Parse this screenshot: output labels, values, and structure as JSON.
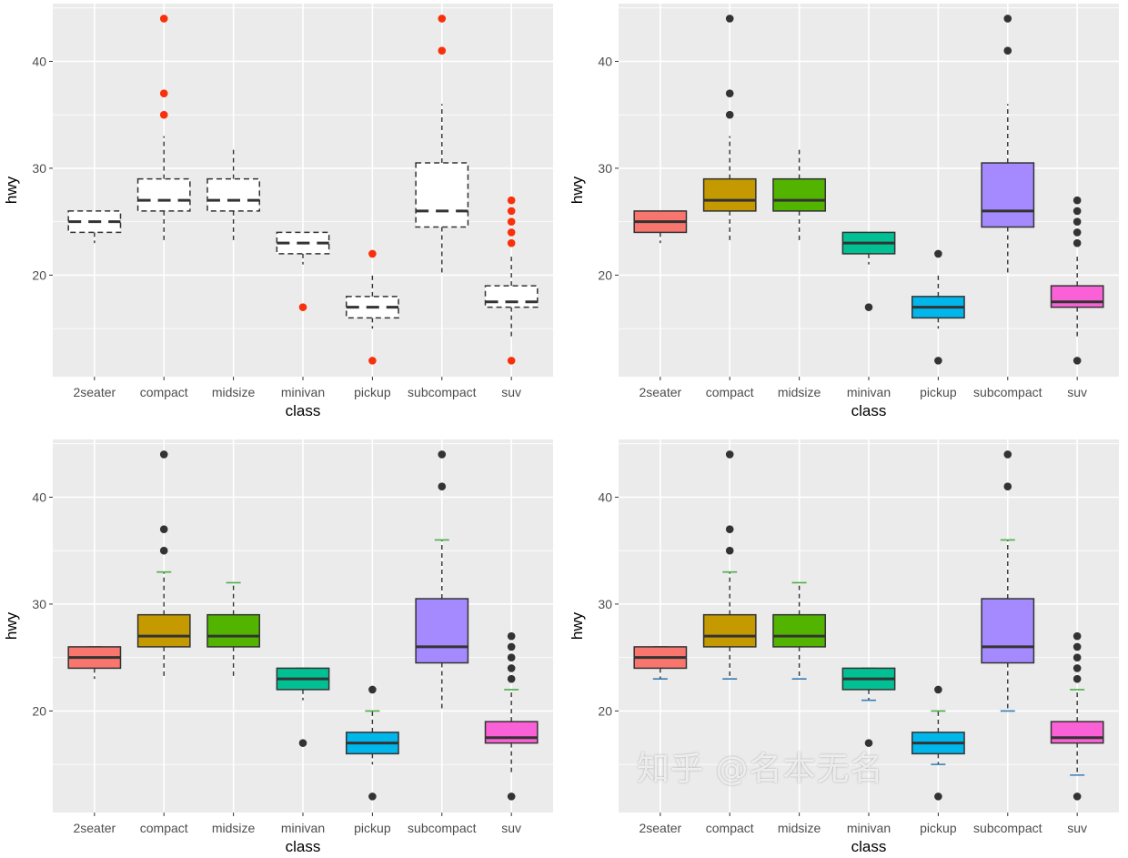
{
  "chart_data": [
    {
      "type": "box",
      "variant": "white dashed boxes, red outliers",
      "xlabel": "class",
      "ylabel": "hwy",
      "yticks": [
        20,
        30,
        40
      ],
      "ylim": [
        10.5,
        45.4
      ],
      "grid": true,
      "outlier_color": "#F8300C",
      "errorbar_top": false,
      "errorbar_bottom": false,
      "filled": false
    },
    {
      "type": "box",
      "variant": "filled boxes",
      "xlabel": "class",
      "ylabel": "hwy",
      "yticks": [
        20,
        30,
        40
      ],
      "ylim": [
        10.5,
        45.4
      ],
      "grid": true,
      "outlier_color": "#333333",
      "errorbar_top": false,
      "errorbar_bottom": false,
      "filled": true
    },
    {
      "type": "box",
      "variant": "filled boxes with upper whisker caps",
      "xlabel": "class",
      "ylabel": "hwy",
      "yticks": [
        20,
        30,
        40
      ],
      "ylim": [
        10.5,
        45.4
      ],
      "grid": true,
      "outlier_color": "#333333",
      "errorbar_top": true,
      "errorbar_bottom": false,
      "filled": true
    },
    {
      "type": "box",
      "variant": "filled boxes with upper and lower whisker caps",
      "xlabel": "class",
      "ylabel": "hwy",
      "yticks": [
        20,
        30,
        40
      ],
      "ylim": [
        10.5,
        45.4
      ],
      "grid": true,
      "outlier_color": "#333333",
      "errorbar_top": true,
      "errorbar_bottom": true,
      "filled": true
    }
  ],
  "categories": [
    "2seater",
    "compact",
    "midsize",
    "minivan",
    "pickup",
    "subcompact",
    "suv"
  ],
  "boxes": [
    {
      "min": 23,
      "q1": 24,
      "median": 25,
      "q3": 26,
      "max": 26,
      "outliers": []
    },
    {
      "min": 23,
      "q1": 26,
      "median": 27,
      "q3": 29,
      "max": 33,
      "outliers": [
        35,
        37,
        44
      ]
    },
    {
      "min": 23,
      "q1": 26,
      "median": 27,
      "q3": 29,
      "max": 32,
      "outliers": []
    },
    {
      "min": 21,
      "q1": 22,
      "median": 23,
      "q3": 24,
      "max": 24,
      "outliers": [
        17
      ]
    },
    {
      "min": 15,
      "q1": 16,
      "median": 17,
      "q3": 18,
      "max": 20,
      "outliers": [
        12,
        22
      ]
    },
    {
      "min": 20,
      "q1": 24.5,
      "median": 26,
      "q3": 30.5,
      "max": 36,
      "outliers": [
        41,
        44
      ]
    },
    {
      "min": 14,
      "q1": 17,
      "median": 17.5,
      "q3": 19,
      "max": 22,
      "outliers": [
        12,
        23,
        24,
        25,
        26,
        27
      ]
    }
  ],
  "fill_colors": [
    "#F8766D",
    "#C49A00",
    "#53B400",
    "#00C094",
    "#00B6EB",
    "#A58AFF",
    "#FB61D7"
  ],
  "cap_top_color": "#4DAF4A",
  "cap_bottom_color": "#377EB8",
  "watermark": "知乎 @名本无名"
}
